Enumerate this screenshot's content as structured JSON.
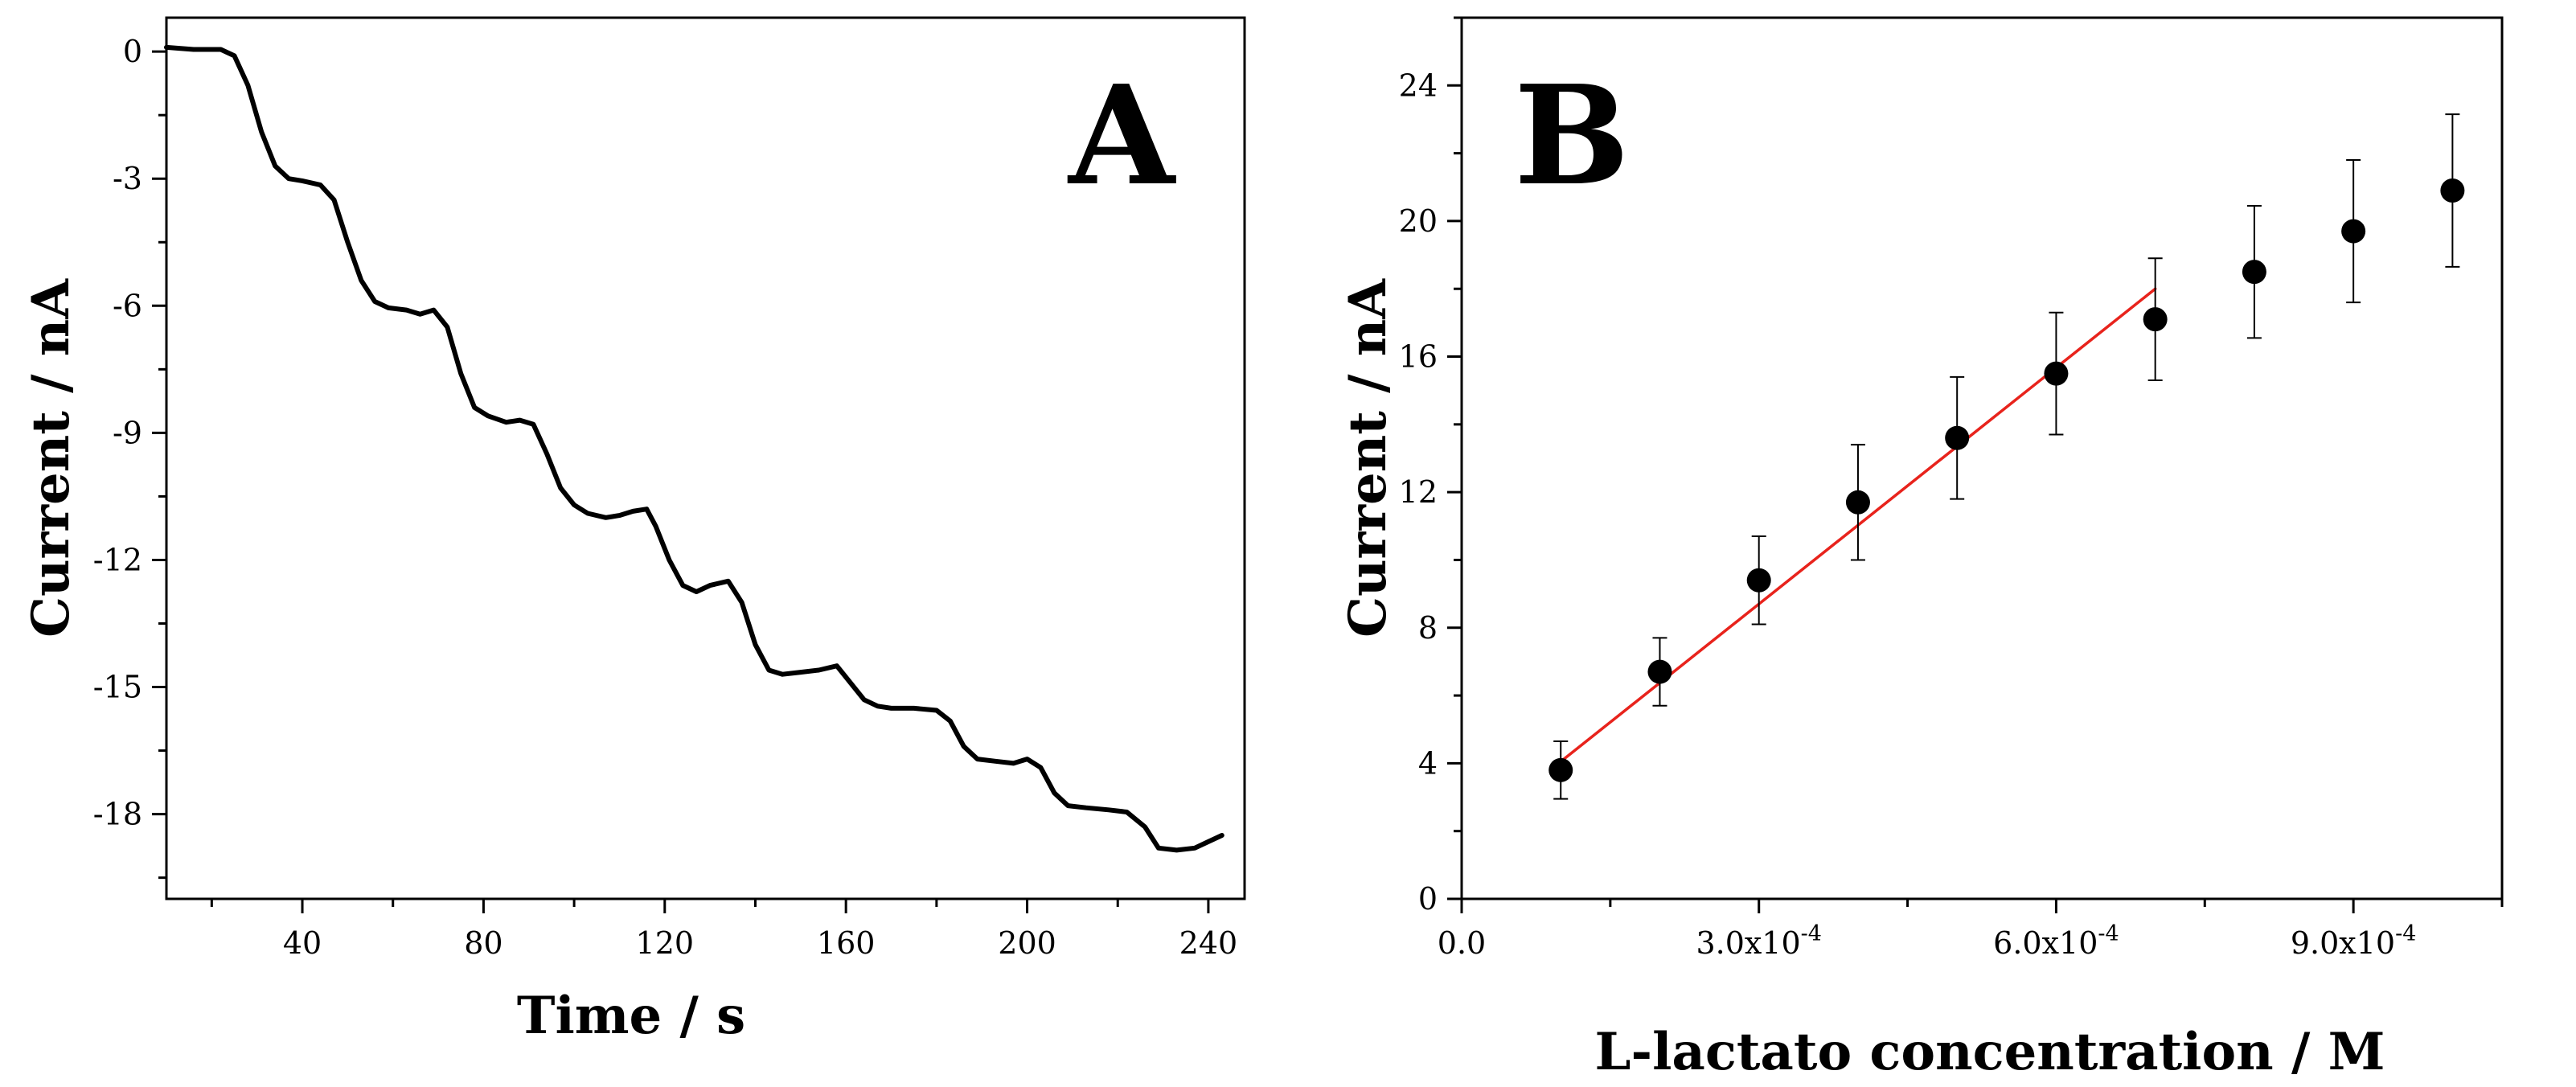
{
  "chart_data": [
    {
      "type": "line",
      "panel_label": "A",
      "xlabel": "Time / s",
      "ylabel": "Current / nA",
      "xlim": [
        10,
        248
      ],
      "ylim": [
        -20,
        0.8
      ],
      "xticks": [
        40,
        80,
        120,
        160,
        200,
        240
      ],
      "xtick_labels": [
        "40",
        "80",
        "120",
        "160",
        "200",
        "240"
      ],
      "yticks": [
        0,
        -3,
        -6,
        -9,
        -12,
        -15,
        -18
      ],
      "ytick_labels": [
        "0",
        "-3",
        "-6",
        "-9",
        "-12",
        "-15",
        "-18"
      ],
      "series": [
        {
          "name": "Current",
          "color": "#000000",
          "x": [
            10,
            16,
            22,
            25,
            28,
            31,
            34,
            37,
            40,
            44,
            47,
            50,
            53,
            56,
            59,
            63,
            66,
            69,
            72,
            75,
            78,
            81,
            85,
            88,
            91,
            94,
            97,
            100,
            103,
            107,
            110,
            113,
            116,
            118,
            121,
            124,
            127,
            130,
            134,
            137,
            140,
            143,
            146,
            150,
            154,
            158,
            161,
            164,
            167,
            170,
            175,
            180,
            183,
            186,
            189,
            193,
            197,
            200,
            203,
            206,
            209,
            213,
            218,
            222,
            226,
            229,
            233,
            237,
            240,
            243
          ],
          "y": [
            0.1,
            0.05,
            0.05,
            -0.1,
            -0.8,
            -1.9,
            -2.7,
            -3.0,
            -3.05,
            -3.15,
            -3.5,
            -4.5,
            -5.4,
            -5.9,
            -6.05,
            -6.1,
            -6.2,
            -6.1,
            -6.5,
            -7.6,
            -8.4,
            -8.6,
            -8.75,
            -8.7,
            -8.8,
            -9.5,
            -10.3,
            -10.7,
            -10.9,
            -11.0,
            -10.95,
            -10.85,
            -10.8,
            -11.2,
            -12.0,
            -12.6,
            -12.75,
            -12.6,
            -12.5,
            -13.0,
            -14.0,
            -14.6,
            -14.7,
            -14.65,
            -14.6,
            -14.5,
            -14.9,
            -15.3,
            -15.45,
            -15.5,
            -15.5,
            -15.55,
            -15.8,
            -16.4,
            -16.7,
            -16.75,
            -16.8,
            -16.7,
            -16.9,
            -17.5,
            -17.8,
            -17.85,
            -17.9,
            -17.95,
            -18.3,
            -18.8,
            -18.85,
            -18.8,
            -18.65,
            -18.5
          ]
        }
      ]
    },
    {
      "type": "scatter",
      "panel_label": "B",
      "xlabel": "L-lactato concentration / M",
      "ylabel": "Current / nA",
      "xlim": [
        0,
        0.00105
      ],
      "ylim": [
        0,
        26
      ],
      "xticks": [
        0,
        0.0003,
        0.0006,
        0.0009
      ],
      "xtick_labels": [
        {
          "mantissa": "0.0",
          "exponent": ""
        },
        {
          "mantissa": "3.0x10",
          "exponent": "-4"
        },
        {
          "mantissa": "6.0x10",
          "exponent": "-4"
        },
        {
          "mantissa": "9.0x10",
          "exponent": "-4"
        }
      ],
      "yticks": [
        0,
        4,
        8,
        12,
        16,
        20,
        24
      ],
      "ytick_labels": [
        "0",
        "4",
        "8",
        "12",
        "16",
        "20",
        "24"
      ],
      "series": [
        {
          "name": "Measured current",
          "color": "#000000",
          "x": [
            0.0001,
            0.0002,
            0.0003,
            0.0004,
            0.0005,
            0.0006,
            0.0007,
            0.0008,
            0.0009,
            0.001
          ],
          "y": [
            3.8,
            6.7,
            9.4,
            11.7,
            13.6,
            15.5,
            17.1,
            18.5,
            19.7,
            20.9
          ],
          "error": [
            0.85,
            1.0,
            1.3,
            1.7,
            1.8,
            1.8,
            1.8,
            1.95,
            2.1,
            2.25
          ]
        },
        {
          "name": "Linear fit",
          "color": "#e8231c",
          "x": [
            0.0001,
            0.0007
          ],
          "y": [
            4.05,
            18.0
          ]
        }
      ]
    }
  ]
}
